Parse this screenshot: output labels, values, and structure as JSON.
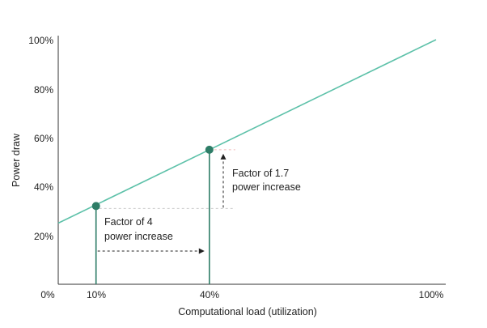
{
  "chart_data": {
    "type": "line",
    "title": "",
    "xlabel": "Computational load (utilization)",
    "ylabel": "Power draw",
    "xlim": [
      0,
      100
    ],
    "ylim": [
      0,
      100
    ],
    "x_ticks": [
      "0%",
      "10%",
      "40%",
      "100%"
    ],
    "y_ticks": [
      "20%",
      "40%",
      "60%",
      "80%",
      "100%"
    ],
    "grid": false,
    "legend": "none",
    "line_color": "#5dc1a9",
    "marker_color": "#2e7d67",
    "series": [
      {
        "x": [
          0,
          100
        ],
        "y": [
          25,
          100
        ]
      }
    ],
    "points": [
      {
        "x": 10,
        "y": 32
      },
      {
        "x": 40,
        "y": 55
      }
    ],
    "annotations": {
      "horizontal": {
        "line1": "Factor of 4",
        "line2": "power increase"
      },
      "vertical": {
        "line1": "Factor of 1.7",
        "line2": "power increase"
      }
    }
  }
}
